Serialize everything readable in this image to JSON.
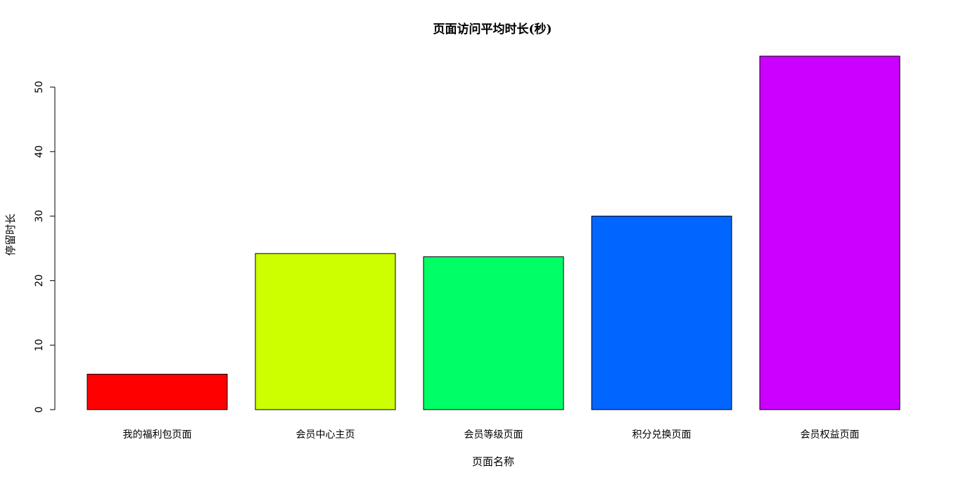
{
  "chart_data": {
    "type": "bar",
    "title": "页面访问平均时长(秒)",
    "xlabel": "页面名称",
    "ylabel": "停留时长",
    "categories": [
      "我的福利包页面",
      "会员中心主页",
      "会员等级页面",
      "积分兑换页面",
      "会员权益页面"
    ],
    "values": [
      5.5,
      24.2,
      23.7,
      30.0,
      54.8
    ],
    "colors": [
      "#FF0000",
      "#CCFF00",
      "#00FF66",
      "#0066FF",
      "#CC00FF"
    ],
    "yticks": [
      0,
      10,
      20,
      30,
      40,
      50
    ],
    "ylim": [
      0,
      55
    ],
    "grid": false,
    "legend": "none"
  }
}
